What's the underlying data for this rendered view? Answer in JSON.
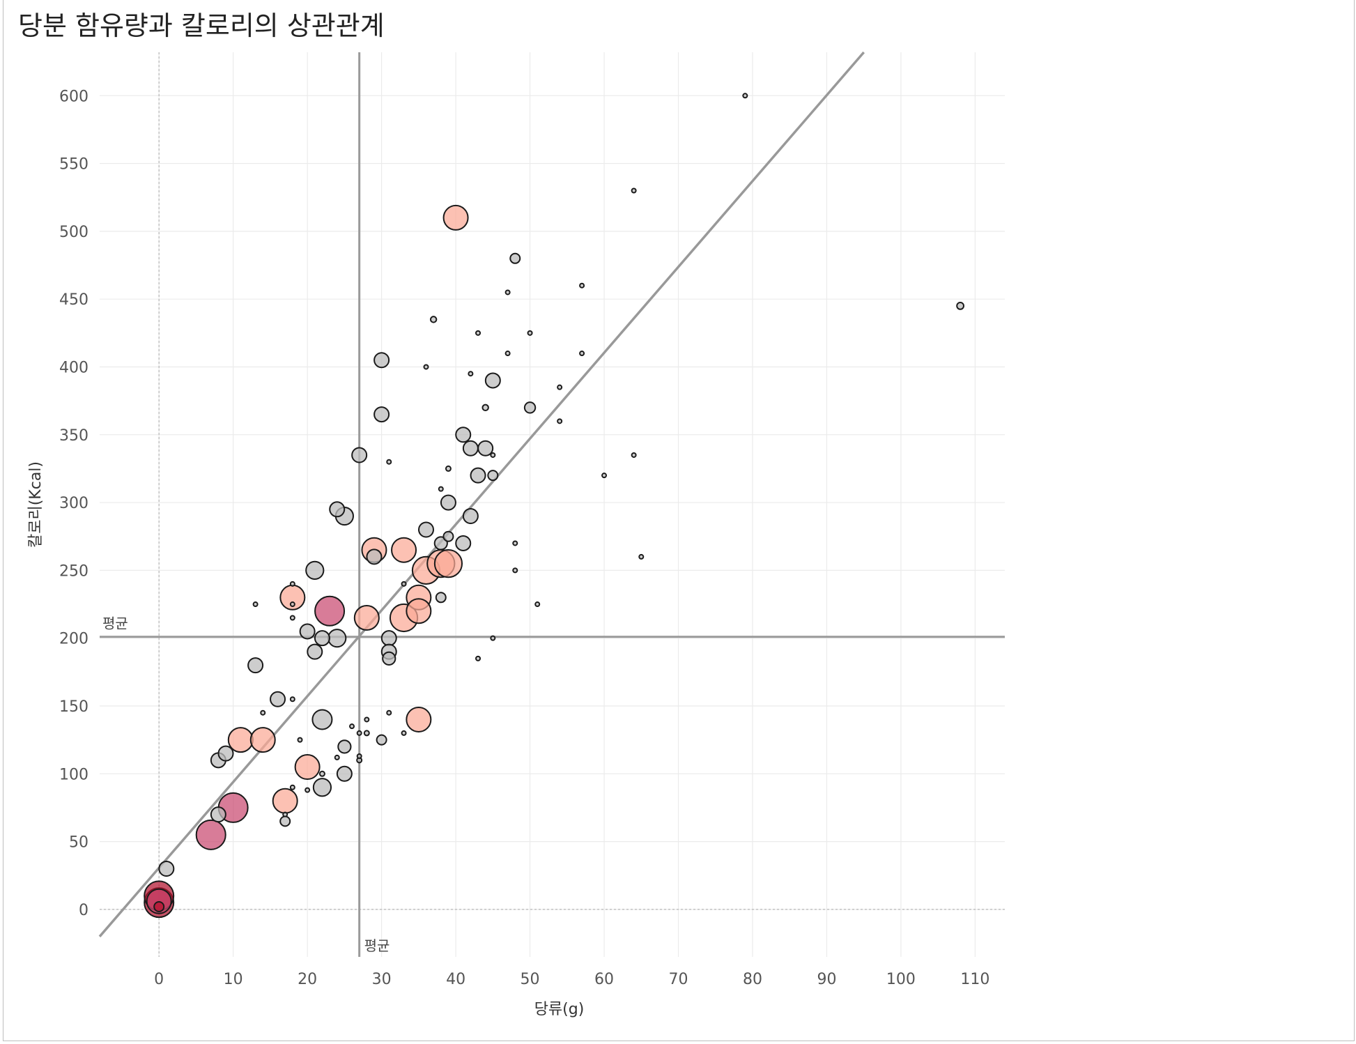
{
  "title": "당분 함유량과 칼로리의 상관관계",
  "chart_data": {
    "type": "scatter",
    "title": "당분 함유량과 칼로리의 상관관계",
    "xlabel": "당류(g)",
    "ylabel": "칼로리(Kcal)",
    "xlim": [
      -8,
      114
    ],
    "ylim": [
      -35,
      632
    ],
    "xticks": [
      0,
      10,
      20,
      30,
      40,
      50,
      60,
      70,
      80,
      90,
      100,
      110
    ],
    "yticks": [
      0,
      50,
      100,
      150,
      200,
      250,
      300,
      350,
      400,
      450,
      500,
      550,
      600
    ],
    "grid": true,
    "reference_lines": [
      {
        "axis": "x",
        "value": 27,
        "label": "평균"
      },
      {
        "axis": "y",
        "value": 201,
        "label": "평균"
      }
    ],
    "trend_line": {
      "type": "linear",
      "x": [
        -8,
        95
      ],
      "y": [
        -20,
        632
      ]
    },
    "size_legend": "none",
    "colors": {
      "gray": "#bcbcbc",
      "salmon": "#fba995",
      "pink": "#c94a70",
      "red": "#b3122e",
      "gridline": "#ebebeb",
      "refline": "#9a9a9a"
    },
    "points": [
      {
        "x": 0,
        "y": 5,
        "s": 3,
        "c": "red"
      },
      {
        "x": 0,
        "y": 10,
        "s": 3,
        "c": "red"
      },
      {
        "x": 0,
        "y": 6,
        "s": 2.5,
        "c": "pink"
      },
      {
        "x": 0,
        "y": 2,
        "s": 1,
        "c": "red"
      },
      {
        "x": 1,
        "y": 30,
        "s": 1.5,
        "c": "gray"
      },
      {
        "x": 7,
        "y": 55,
        "s": 3,
        "c": "pink"
      },
      {
        "x": 8,
        "y": 70,
        "s": 1.5,
        "c": "gray"
      },
      {
        "x": 8,
        "y": 110,
        "s": 1.5,
        "c": "gray"
      },
      {
        "x": 9,
        "y": 115,
        "s": 1.5,
        "c": "gray"
      },
      {
        "x": 10,
        "y": 75,
        "s": 3,
        "c": "pink"
      },
      {
        "x": 11,
        "y": 125,
        "s": 2.5,
        "c": "salmon"
      },
      {
        "x": 13,
        "y": 180,
        "s": 1.5,
        "c": "gray"
      },
      {
        "x": 13,
        "y": 225,
        "s": 0.3,
        "c": "gray"
      },
      {
        "x": 14,
        "y": 125,
        "s": 2.5,
        "c": "salmon"
      },
      {
        "x": 14,
        "y": 145,
        "s": 0.3,
        "c": "gray"
      },
      {
        "x": 16,
        "y": 155,
        "s": 1.5,
        "c": "gray"
      },
      {
        "x": 17,
        "y": 80,
        "s": 2.5,
        "c": "salmon"
      },
      {
        "x": 17,
        "y": 65,
        "s": 1,
        "c": "gray"
      },
      {
        "x": 17,
        "y": 70,
        "s": 0.3,
        "c": "gray"
      },
      {
        "x": 18,
        "y": 230,
        "s": 2.5,
        "c": "salmon"
      },
      {
        "x": 18,
        "y": 240,
        "s": 0.3,
        "c": "gray"
      },
      {
        "x": 18,
        "y": 225,
        "s": 0.3,
        "c": "gray"
      },
      {
        "x": 18,
        "y": 215,
        "s": 0.3,
        "c": "gray"
      },
      {
        "x": 18,
        "y": 155,
        "s": 0.3,
        "c": "gray"
      },
      {
        "x": 18,
        "y": 90,
        "s": 0.3,
        "c": "gray"
      },
      {
        "x": 19,
        "y": 125,
        "s": 0.3,
        "c": "gray"
      },
      {
        "x": 20,
        "y": 105,
        "s": 2.5,
        "c": "salmon"
      },
      {
        "x": 20,
        "y": 205,
        "s": 1.5,
        "c": "gray"
      },
      {
        "x": 20,
        "y": 88,
        "s": 0.3,
        "c": "gray"
      },
      {
        "x": 21,
        "y": 250,
        "s": 1.8,
        "c": "gray"
      },
      {
        "x": 21,
        "y": 190,
        "s": 1.5,
        "c": "gray"
      },
      {
        "x": 22,
        "y": 140,
        "s": 2,
        "c": "gray"
      },
      {
        "x": 22,
        "y": 90,
        "s": 1.8,
        "c": "gray"
      },
      {
        "x": 22,
        "y": 200,
        "s": 1.5,
        "c": "gray"
      },
      {
        "x": 22,
        "y": 100,
        "s": 0.5,
        "c": "gray"
      },
      {
        "x": 23,
        "y": 220,
        "s": 3,
        "c": "pink"
      },
      {
        "x": 24,
        "y": 200,
        "s": 1.8,
        "c": "gray"
      },
      {
        "x": 24,
        "y": 295,
        "s": 1.5,
        "c": "gray"
      },
      {
        "x": 24,
        "y": 112,
        "s": 0.3,
        "c": "gray"
      },
      {
        "x": 25,
        "y": 290,
        "s": 1.8,
        "c": "gray"
      },
      {
        "x": 25,
        "y": 120,
        "s": 1.3,
        "c": "gray"
      },
      {
        "x": 25,
        "y": 100,
        "s": 1.5,
        "c": "gray"
      },
      {
        "x": 26,
        "y": 135,
        "s": 0.3,
        "c": "gray"
      },
      {
        "x": 27,
        "y": 335,
        "s": 1.5,
        "c": "gray"
      },
      {
        "x": 27,
        "y": 130,
        "s": 0.3,
        "c": "gray"
      },
      {
        "x": 27,
        "y": 113,
        "s": 0.3,
        "c": "gray"
      },
      {
        "x": 27,
        "y": 110,
        "s": 0.5,
        "c": "gray"
      },
      {
        "x": 28,
        "y": 215,
        "s": 2.5,
        "c": "salmon"
      },
      {
        "x": 28,
        "y": 140,
        "s": 0.3,
        "c": "gray"
      },
      {
        "x": 28,
        "y": 130,
        "s": 0.5,
        "c": "gray"
      },
      {
        "x": 29,
        "y": 265,
        "s": 2.5,
        "c": "salmon"
      },
      {
        "x": 29,
        "y": 260,
        "s": 1.5,
        "c": "gray"
      },
      {
        "x": 30,
        "y": 405,
        "s": 1.5,
        "c": "gray"
      },
      {
        "x": 30,
        "y": 365,
        "s": 1.5,
        "c": "gray"
      },
      {
        "x": 30,
        "y": 125,
        "s": 1,
        "c": "gray"
      },
      {
        "x": 31,
        "y": 200,
        "s": 1.5,
        "c": "gray"
      },
      {
        "x": 31,
        "y": 190,
        "s": 1.5,
        "c": "gray"
      },
      {
        "x": 31,
        "y": 185,
        "s": 1.3,
        "c": "gray"
      },
      {
        "x": 31,
        "y": 330,
        "s": 0.3,
        "c": "gray"
      },
      {
        "x": 31,
        "y": 145,
        "s": 0.3,
        "c": "gray"
      },
      {
        "x": 33,
        "y": 265,
        "s": 2.5,
        "c": "salmon"
      },
      {
        "x": 33,
        "y": 215,
        "s": 2.8,
        "c": "salmon"
      },
      {
        "x": 33,
        "y": 240,
        "s": 0.3,
        "c": "gray"
      },
      {
        "x": 33,
        "y": 130,
        "s": 0.3,
        "c": "gray"
      },
      {
        "x": 35,
        "y": 230,
        "s": 2.5,
        "c": "salmon"
      },
      {
        "x": 35,
        "y": 220,
        "s": 2.5,
        "c": "salmon"
      },
      {
        "x": 35,
        "y": 140,
        "s": 2.5,
        "c": "salmon"
      },
      {
        "x": 36,
        "y": 250,
        "s": 2.8,
        "c": "salmon"
      },
      {
        "x": 36,
        "y": 280,
        "s": 1.5,
        "c": "gray"
      },
      {
        "x": 36,
        "y": 400,
        "s": 0.3,
        "c": "gray"
      },
      {
        "x": 37,
        "y": 435,
        "s": 0.6,
        "c": "gray"
      },
      {
        "x": 38,
        "y": 255,
        "s": 2.8,
        "c": "salmon"
      },
      {
        "x": 38,
        "y": 270,
        "s": 1.3,
        "c": "gray"
      },
      {
        "x": 38,
        "y": 230,
        "s": 1,
        "c": "gray"
      },
      {
        "x": 38,
        "y": 310,
        "s": 0.3,
        "c": "gray"
      },
      {
        "x": 39,
        "y": 255,
        "s": 2.8,
        "c": "salmon"
      },
      {
        "x": 39,
        "y": 300,
        "s": 1.5,
        "c": "gray"
      },
      {
        "x": 39,
        "y": 275,
        "s": 1,
        "c": "gray"
      },
      {
        "x": 39,
        "y": 325,
        "s": 0.5,
        "c": "gray"
      },
      {
        "x": 40,
        "y": 510,
        "s": 2.5,
        "c": "salmon"
      },
      {
        "x": 41,
        "y": 350,
        "s": 1.5,
        "c": "gray"
      },
      {
        "x": 41,
        "y": 270,
        "s": 1.5,
        "c": "gray"
      },
      {
        "x": 42,
        "y": 340,
        "s": 1.5,
        "c": "gray"
      },
      {
        "x": 42,
        "y": 290,
        "s": 1.5,
        "c": "gray"
      },
      {
        "x": 42,
        "y": 395,
        "s": 0.3,
        "c": "gray"
      },
      {
        "x": 43,
        "y": 320,
        "s": 1.5,
        "c": "gray"
      },
      {
        "x": 43,
        "y": 425,
        "s": 0.3,
        "c": "gray"
      },
      {
        "x": 43,
        "y": 185,
        "s": 0.3,
        "c": "gray"
      },
      {
        "x": 44,
        "y": 340,
        "s": 1.5,
        "c": "gray"
      },
      {
        "x": 44,
        "y": 370,
        "s": 0.6,
        "c": "gray"
      },
      {
        "x": 45,
        "y": 390,
        "s": 1.5,
        "c": "gray"
      },
      {
        "x": 45,
        "y": 320,
        "s": 1,
        "c": "gray"
      },
      {
        "x": 45,
        "y": 335,
        "s": 0.3,
        "c": "gray"
      },
      {
        "x": 45,
        "y": 200,
        "s": 0.3,
        "c": "gray"
      },
      {
        "x": 47,
        "y": 455,
        "s": 0.3,
        "c": "gray"
      },
      {
        "x": 47,
        "y": 410,
        "s": 0.3,
        "c": "gray"
      },
      {
        "x": 48,
        "y": 480,
        "s": 1,
        "c": "gray"
      },
      {
        "x": 48,
        "y": 270,
        "s": 0.3,
        "c": "gray"
      },
      {
        "x": 48,
        "y": 250,
        "s": 0.3,
        "c": "gray"
      },
      {
        "x": 50,
        "y": 370,
        "s": 1.1,
        "c": "gray"
      },
      {
        "x": 50,
        "y": 425,
        "s": 0.3,
        "c": "gray"
      },
      {
        "x": 51,
        "y": 225,
        "s": 0.3,
        "c": "gray"
      },
      {
        "x": 54,
        "y": 385,
        "s": 0.3,
        "c": "gray"
      },
      {
        "x": 54,
        "y": 360,
        "s": 0.3,
        "c": "gray"
      },
      {
        "x": 57,
        "y": 460,
        "s": 0.3,
        "c": "gray"
      },
      {
        "x": 57,
        "y": 410,
        "s": 0.3,
        "c": "gray"
      },
      {
        "x": 60,
        "y": 320,
        "s": 0.3,
        "c": "gray"
      },
      {
        "x": 64,
        "y": 530,
        "s": 0.3,
        "c": "gray"
      },
      {
        "x": 64,
        "y": 335,
        "s": 0.3,
        "c": "gray"
      },
      {
        "x": 65,
        "y": 260,
        "s": 0.3,
        "c": "gray"
      },
      {
        "x": 79,
        "y": 600,
        "s": 0.3,
        "c": "gray"
      },
      {
        "x": 108,
        "y": 445,
        "s": 0.7,
        "c": "gray"
      }
    ]
  }
}
